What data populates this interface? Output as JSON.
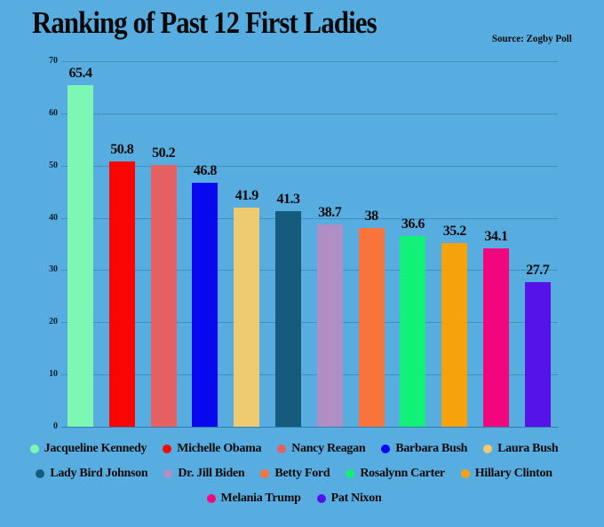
{
  "page": {
    "background": "#57ADE0"
  },
  "header": {
    "title": "Ranking of Past 12 First Ladies",
    "source": "Source: Zogby Poll"
  },
  "chart_data": {
    "type": "bar",
    "title": "Ranking of Past 12 First Ladies",
    "source": "Source: Zogby Poll",
    "categories": [
      "Jacqueline Kennedy",
      "Michelle Obama",
      "Nancy Reagan",
      "Barbara Bush",
      "Laura Bush",
      "Lady Bird Johnson",
      "Dr. Jill Biden",
      "Betty Ford",
      "Rosalynn Carter",
      "Hillary Clinton",
      "Melania Trump",
      "Pat Nixon"
    ],
    "values": [
      65.4,
      50.8,
      50.2,
      46.8,
      41.9,
      41.3,
      38.7,
      38,
      36.6,
      35.2,
      34.1,
      27.7
    ],
    "value_labels": [
      "65.4",
      "50.8",
      "50.2",
      "46.8",
      "41.9",
      "41.3",
      "38.7",
      "38",
      "36.6",
      "35.2",
      "34.1",
      "27.7"
    ],
    "bar_colors": [
      "#7EF7B4",
      "#F80606",
      "#E46063",
      "#0808F0",
      "#EECB70",
      "#155B7E",
      "#AF8FC4",
      "#F8743B",
      "#12F07A",
      "#F5A20D",
      "#F2067E",
      "#5613E8"
    ],
    "xlabel": "",
    "ylabel": "",
    "ylim": [
      0,
      70
    ],
    "yticks": [
      0,
      10,
      20,
      30,
      40,
      50,
      60,
      70
    ],
    "grid": true,
    "legend_position": "bottom",
    "legend_rows": [
      5,
      5,
      2
    ]
  }
}
